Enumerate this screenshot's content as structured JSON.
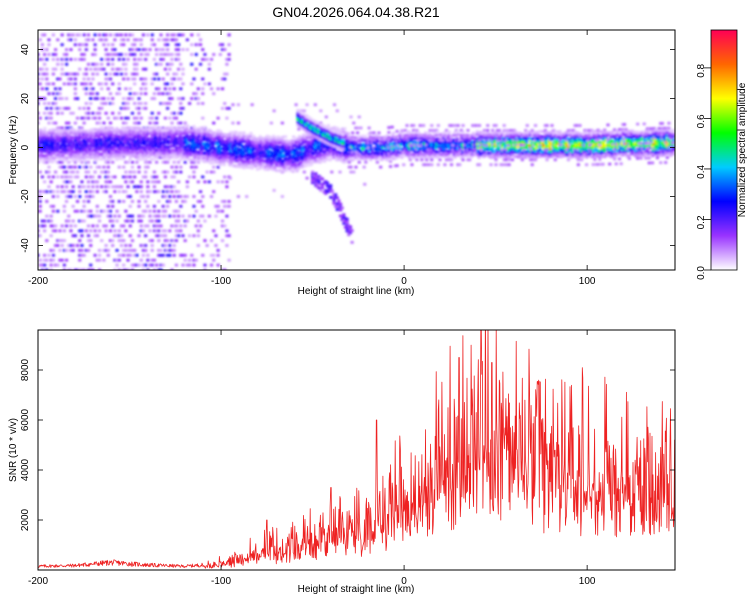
{
  "figure": {
    "title": "GN04.2026.064.04.38.R21"
  },
  "chart_data": [
    {
      "type": "heatmap",
      "title": "GN04.2026.064.04.38.R21",
      "xlabel": "Height of straight line (km)",
      "ylabel": "Frequency (Hz)",
      "xlim": [
        -200,
        148
      ],
      "ylim": [
        -50,
        48
      ],
      "xticks": [
        -200,
        -100,
        0,
        100
      ],
      "xtick_labels": [
        "-200",
        "-100",
        "0",
        "100"
      ],
      "yticks": [
        -40,
        -20,
        0,
        20,
        40
      ],
      "ytick_labels": [
        "-40",
        "-20",
        "0",
        "20",
        "40"
      ],
      "grid": false,
      "colorbar": {
        "label": "Normalized spectral amplitude",
        "range": [
          0.0,
          0.95
        ],
        "ticks": [
          0.0,
          0.2,
          0.4,
          0.6,
          0.8
        ],
        "tick_labels": [
          "0.0",
          "0.2",
          "0.4",
          "0.6",
          "0.8"
        ],
        "colors": [
          "#ffffff",
          "#9933ff",
          "#0000ff",
          "#00ccff",
          "#00ff00",
          "#ffff00",
          "#ff6600",
          "#ff0055"
        ]
      },
      "ridges": [
        {
          "name": "main",
          "points": [
            [
              -200,
              1
            ],
            [
              -150,
              2
            ],
            [
              -120,
              2
            ],
            [
              -100,
              0
            ],
            [
              -80,
              -2
            ],
            [
              -60,
              -3
            ],
            [
              -50,
              0
            ],
            [
              -40,
              2
            ],
            [
              -30,
              0
            ],
            [
              -10,
              0
            ],
            [
              0,
              1
            ],
            [
              50,
              1
            ],
            [
              100,
              1
            ],
            [
              148,
              2
            ]
          ]
        },
        {
          "name": "upper-branch",
          "points": [
            [
              -58,
              12
            ],
            [
              -50,
              8
            ],
            [
              -40,
              4
            ],
            [
              -33,
              2
            ]
          ]
        },
        {
          "name": "lower-branch",
          "points": [
            [
              -50,
              -12
            ],
            [
              -40,
              -18
            ],
            [
              -35,
              -25
            ],
            [
              -28,
              -37
            ]
          ]
        }
      ]
    },
    {
      "type": "line",
      "title": "",
      "xlabel": "Height of straight line (km)",
      "ylabel": "SNR (10 * v/v)",
      "xlim": [
        -200,
        148
      ],
      "ylim": [
        0,
        9600
      ],
      "xticks": [
        -200,
        -100,
        0,
        100
      ],
      "xtick_labels": [
        "-200",
        "-100",
        "0",
        "100"
      ],
      "yticks": [
        2000,
        4000,
        6000,
        8000
      ],
      "ytick_labels": [
        "2000",
        "4000",
        "6000",
        "8000"
      ],
      "grid": false,
      "line_color": "#ee2222",
      "series": [
        {
          "name": "SNR",
          "x": [
            -200,
            -180,
            -160,
            -140,
            -120,
            -110,
            -100,
            -90,
            -80,
            -70,
            -60,
            -50,
            -40,
            -30,
            -20,
            -10,
            0,
            10,
            20,
            30,
            40,
            50,
            60,
            70,
            80,
            90,
            100,
            110,
            120,
            130,
            140,
            148
          ],
          "values": [
            150,
            180,
            300,
            200,
            150,
            200,
            300,
            500,
            800,
            900,
            1000,
            1300,
            1700,
            2000,
            2000,
            2800,
            3200,
            3500,
            4500,
            5300,
            5800,
            5600,
            5400,
            5000,
            4800,
            4500,
            4300,
            4000,
            3800,
            3700,
            3600,
            3600
          ],
          "peaks": [
            {
              "x": 42,
              "y": 9600
            },
            {
              "x": 30,
              "y": 8500
            },
            {
              "x": 48,
              "y": 8300
            },
            {
              "x": -15,
              "y": 6000
            },
            {
              "x": -40,
              "y": 3300
            },
            {
              "x": -75,
              "y": 2000
            }
          ]
        }
      ]
    }
  ]
}
